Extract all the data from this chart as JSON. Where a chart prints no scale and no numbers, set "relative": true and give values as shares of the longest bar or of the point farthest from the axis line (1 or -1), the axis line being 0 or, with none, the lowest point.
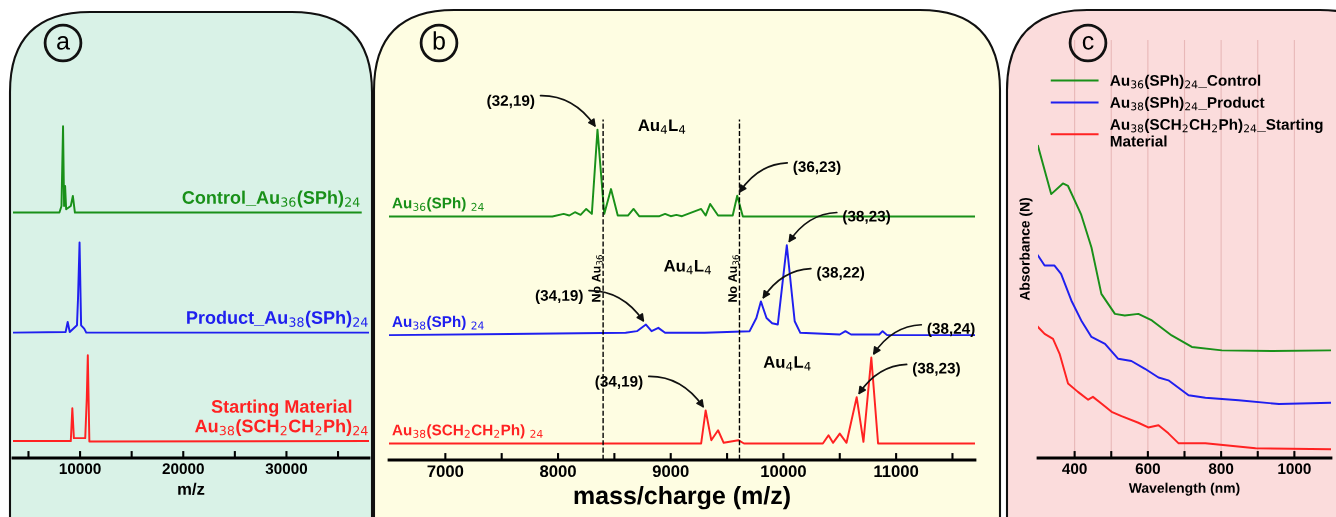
{
  "chart_data": [
    {
      "type": "line",
      "title": "a",
      "xlabel": "m/z",
      "relative": true,
      "legend": false,
      "grid": false,
      "tick_labels": "x",
      "xlim": [
        3500,
        38000
      ],
      "xticks": [
        {
          "value": 5000,
          "label": null
        },
        10000,
        {
          "value": 15000,
          "label": null
        },
        20000,
        {
          "value": 25000,
          "label": null
        },
        30000,
        {
          "value": 35000,
          "label": null
        }
      ],
      "series": [
        {
          "name": "Control_Au$_{36}$(SPh)$_{24}$",
          "color": "#199019",
          "x": [
            3500,
            8000,
            8200,
            8350,
            8450,
            8550,
            8650,
            9100,
            9300,
            9500,
            37200
          ],
          "values": [
            0.74,
            0.74,
            0.76,
            1.0,
            0.76,
            0.82,
            0.75,
            0.76,
            0.79,
            0.74,
            0.74
          ]
        },
        {
          "name": "Product_Au$_{38}$(SPh)$_{24}$",
          "color": "#1f1fef",
          "x": [
            3500,
            8600,
            8800,
            9000,
            9700,
            9800,
            9950,
            10100,
            10400,
            10600,
            38000
          ],
          "values": [
            0.378,
            0.38,
            0.41,
            0.38,
            0.4,
            0.48,
            0.65,
            0.4,
            0.39,
            0.378,
            0.378
          ]
        },
        {
          "name": "Starting Material\nAu$_{38}$(SCH$_{2}$CH$_{2}$Ph)$_{24}$",
          "color": "#ff2222",
          "x": [
            3500,
            9100,
            9250,
            9400,
            10500,
            10650,
            10750,
            10900,
            38000
          ],
          "values": [
            0.051,
            0.051,
            0.15,
            0.06,
            0.06,
            0.18,
            0.31,
            0.05,
            0.051
          ]
        }
      ]
    },
    {
      "type": "line",
      "title": "b",
      "xlabel": "mass/charge (m/z)",
      "relative": true,
      "legend": false,
      "grid": false,
      "tick_labels": "x",
      "xlim": [
        6500,
        11700
      ],
      "xticks": [
        7000,
        {
          "value": 7500,
          "label": null
        },
        8000,
        {
          "value": 8500,
          "label": null
        },
        9000,
        {
          "value": 9500,
          "label": null
        },
        10000,
        {
          "value": 10500,
          "label": null
        },
        11000,
        {
          "value": 11500,
          "label": null
        }
      ],
      "series": [
        {
          "name": "Au$_{36}$(SPh) $_{24}$",
          "color": "#199019",
          "x": [
            6500,
            7950,
            8050,
            8100,
            8150,
            8200,
            8250,
            8300,
            8350,
            8410,
            8470,
            8530,
            8620,
            8670,
            8720,
            8900,
            8950,
            9000,
            9050,
            9100,
            9270,
            9310,
            9350,
            9420,
            9550,
            9590,
            9640,
            11700
          ],
          "values": [
            0.737,
            0.737,
            0.745,
            0.74,
            0.75,
            0.742,
            0.76,
            0.745,
            1.0,
            0.745,
            0.82,
            0.74,
            0.74,
            0.76,
            0.738,
            0.738,
            0.745,
            0.738,
            0.742,
            0.738,
            0.76,
            0.74,
            0.775,
            0.74,
            0.74,
            0.8,
            0.737,
            0.737
          ]
        },
        {
          "name": "Au$_{38}$(SPh) $_{24}$",
          "color": "#1f1fef",
          "x": [
            6500,
            8600,
            8700,
            8780,
            8830,
            8890,
            8950,
            9300,
            9700,
            9760,
            9800,
            9850,
            9900,
            9950,
            10030,
            10100,
            10150,
            10500,
            10550,
            10600,
            10850,
            10880,
            10920,
            11700
          ],
          "values": [
            0.378,
            0.385,
            0.39,
            0.41,
            0.39,
            0.4,
            0.385,
            0.385,
            0.39,
            0.43,
            0.48,
            0.43,
            0.414,
            0.41,
            0.65,
            0.42,
            0.385,
            0.38,
            0.39,
            0.38,
            0.38,
            0.39,
            0.378,
            0.378
          ]
        },
        {
          "name": "Au$_{38}$(SCH$_{2}$CH$_{2}$Ph) $_{24}$",
          "color": "#ff2222",
          "x": [
            6500,
            9270,
            9310,
            9360,
            9420,
            9470,
            9600,
            9650,
            10350,
            10400,
            10440,
            10500,
            10560,
            10650,
            10710,
            10780,
            10840,
            11700
          ],
          "values": [
            0.05,
            0.05,
            0.15,
            0.06,
            0.09,
            0.052,
            0.06,
            0.05,
            0.05,
            0.075,
            0.052,
            0.08,
            0.052,
            0.19,
            0.055,
            0.31,
            0.05,
            0.05
          ]
        }
      ],
      "ref_lines": [
        {
          "axis": "x",
          "value": 8400,
          "label": "No Au$_{36}$",
          "line_style": "dashed",
          "color": "#000000"
        },
        {
          "axis": "x",
          "value": 9610,
          "label": "No Au$_{36}$",
          "line_style": "dashed",
          "color": "#000000"
        }
      ],
      "annotations": [
        {
          "text": "(32,19)",
          "x": 8350,
          "y": 1.0
        },
        {
          "text": "(36,23)",
          "x": 9590,
          "y": 0.8
        },
        {
          "text": "(38,23)",
          "x": 10030,
          "y": 0.65
        },
        {
          "text": "(38,22)",
          "x": 9800,
          "y": 0.48
        },
        {
          "text": "(34,19)",
          "x": 8780,
          "y": 0.41
        },
        {
          "text": "(34,19)",
          "x": 9310,
          "y": 0.15
        },
        {
          "text": "(38,24)",
          "x": 10780,
          "y": 0.31
        },
        {
          "text": "(38,23)",
          "x": 10650,
          "y": 0.19
        },
        "Au$_{4}$L$_{4}$",
        "Au$_{4}$L$_{4}$",
        "Au$_{4}$L$_{4}$"
      ]
    },
    {
      "type": "line",
      "title": "c",
      "xlabel": "Wavelength (nm)",
      "ylabel": "Absorbance (N)",
      "relative": true,
      "legend": "top left",
      "grid": "x",
      "tick_labels": "x",
      "xlim": [
        300,
        1100
      ],
      "xticks": [
        400,
        {
          "value": 500,
          "label": null
        },
        600,
        {
          "value": 700,
          "label": null
        },
        800,
        {
          "value": 900,
          "label": null
        },
        1000
      ],
      "series": [
        {
          "name": "Au$_{36}$(SPh)$_{24}$_Control",
          "color": "#199019",
          "x": [
            300,
            336,
            368,
            382,
            418,
            446,
            473,
            510,
            537,
            574,
            611,
            665,
            720,
            802,
            940,
            1100
          ],
          "values": [
            1.0,
            0.846,
            0.88,
            0.872,
            0.78,
            0.675,
            0.526,
            0.462,
            0.457,
            0.462,
            0.441,
            0.393,
            0.356,
            0.345,
            0.343,
            0.345
          ]
        },
        {
          "name": "Au$_{38}$(SPh)$_{24}$_Product",
          "color": "#1f1fef",
          "x": [
            300,
            318,
            345,
            363,
            391,
            418,
            446,
            483,
            519,
            555,
            592,
            629,
            656,
            711,
            757,
            848,
            958,
            1100
          ],
          "values": [
            0.649,
            0.617,
            0.617,
            0.59,
            0.505,
            0.441,
            0.388,
            0.366,
            0.318,
            0.311,
            0.286,
            0.258,
            0.249,
            0.201,
            0.193,
            0.185,
            0.173,
            0.177
          ]
        },
        {
          "name": "Au$_{38}$(SCH$_{2}$CH$_{2}$Ph)$_{24}$_Starting\nMaterial",
          "color": "#ff2222",
          "x": [
            300,
            318,
            341,
            359,
            382,
            409,
            437,
            450,
            473,
            501,
            528,
            574,
            601,
            629,
            656,
            684,
            757,
            894,
            1100
          ],
          "values": [
            0.42,
            0.398,
            0.382,
            0.334,
            0.239,
            0.212,
            0.187,
            0.196,
            0.175,
            0.148,
            0.134,
            0.113,
            0.098,
            0.105,
            0.079,
            0.047,
            0.047,
            0.031,
            0.028
          ]
        }
      ]
    }
  ]
}
